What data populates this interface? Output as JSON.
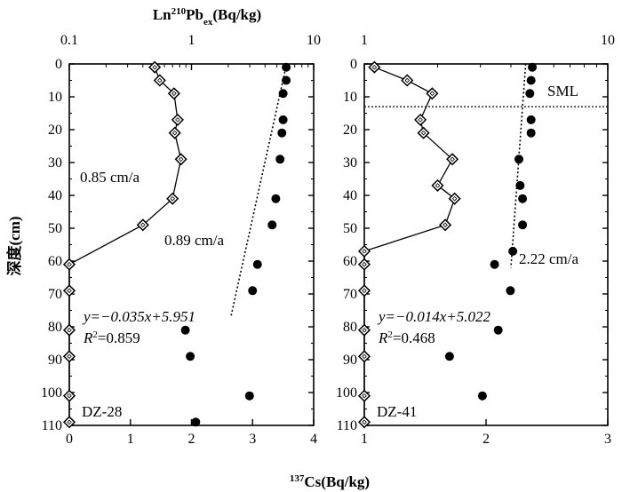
{
  "chart_data": [
    {
      "type": "scatter",
      "panel_label": "DZ-28",
      "ylabel": "深度(cm)",
      "ylim": [
        110,
        0
      ],
      "y_ticks": [
        0,
        10,
        20,
        30,
        40,
        50,
        60,
        70,
        80,
        90,
        100,
        110
      ],
      "top_axis": {
        "label": "Ln<sup>210</sup>Pb<sub>ex</sub>(Bq/kg)",
        "scale": "log",
        "xlim": [
          0.1,
          10
        ],
        "ticks": [
          0.1,
          1,
          10
        ],
        "tick_labels": [
          "0.1",
          "1",
          "10"
        ]
      },
      "bottom_axis": {
        "label": "<sup>137</sup>Cs(Bq/kg)",
        "scale": "linear",
        "xlim": [
          0,
          4
        ],
        "ticks": [
          0,
          1,
          2,
          3,
          4
        ],
        "tick_labels": [
          "0",
          "1",
          "2",
          "3",
          "4"
        ]
      },
      "series": [
        {
          "marker": "open-diamond",
          "axis": "top",
          "connected": true,
          "points": [
            [
              0.5,
              1
            ],
            [
              0.55,
              5
            ],
            [
              0.72,
              9
            ],
            [
              0.77,
              17
            ],
            [
              0.73,
              21
            ],
            [
              0.82,
              29
            ],
            [
              0.7,
              41
            ],
            [
              0.4,
              49
            ],
            [
              0.1,
              61
            ],
            [
              0.1,
              69
            ],
            [
              0.1,
              81
            ],
            [
              0.1,
              89
            ],
            [
              0.1,
              101
            ],
            [
              0.1,
              109
            ]
          ]
        },
        {
          "marker": "filled-circle",
          "axis": "bottom",
          "connected": false,
          "points": [
            [
              3.55,
              1
            ],
            [
              3.55,
              5
            ],
            [
              3.5,
              9
            ],
            [
              3.5,
              17
            ],
            [
              3.48,
              21
            ],
            [
              3.45,
              29
            ],
            [
              3.38,
              41
            ],
            [
              3.32,
              49
            ],
            [
              3.08,
              61
            ],
            [
              3.0,
              69
            ],
            [
              1.9,
              81
            ],
            [
              1.98,
              89
            ],
            [
              2.95,
              101
            ],
            [
              2.07,
              109
            ]
          ]
        }
      ],
      "fit_line": {
        "axis": "top",
        "points": [
          [
            6.0,
            0
          ],
          [
            2.1,
            77
          ]
        ],
        "equation": "y=−0.035x+5.951",
        "r2": "=0.859"
      },
      "annotations": [
        "0.85 cm/a",
        "0.89 cm/a"
      ]
    },
    {
      "type": "scatter",
      "panel_label": "DZ-41",
      "ylim": [
        110,
        0
      ],
      "y_ticks": [
        0,
        10,
        20,
        30,
        40,
        50,
        60,
        70,
        80,
        90,
        100,
        110
      ],
      "top_axis": {
        "scale": "log",
        "xlim": [
          1,
          10
        ],
        "ticks": [
          1,
          10
        ],
        "tick_labels": [
          "1",
          "10"
        ]
      },
      "bottom_axis": {
        "scale": "linear",
        "xlim": [
          1,
          3
        ],
        "ticks": [
          1,
          2,
          3
        ],
        "tick_labels": [
          "1",
          "2",
          "3"
        ]
      },
      "series": [
        {
          "marker": "open-diamond",
          "axis": "top",
          "connected": true,
          "points": [
            [
              1.1,
              1
            ],
            [
              1.5,
              5
            ],
            [
              1.9,
              9
            ],
            [
              1.7,
              17
            ],
            [
              1.75,
              21
            ],
            [
              2.3,
              29
            ],
            [
              2.0,
              37
            ],
            [
              2.35,
              41
            ],
            [
              2.15,
              49
            ],
            [
              1.0,
              57
            ],
            [
              1.0,
              61
            ],
            [
              1.0,
              69
            ],
            [
              1.0,
              81
            ],
            [
              1.0,
              89
            ],
            [
              1.0,
              101
            ],
            [
              1.0,
              109
            ]
          ]
        },
        {
          "marker": "filled-circle",
          "axis": "bottom",
          "connected": false,
          "points": [
            [
              2.38,
              1
            ],
            [
              2.37,
              5
            ],
            [
              2.36,
              9
            ],
            [
              2.37,
              17
            ],
            [
              2.37,
              21
            ],
            [
              2.27,
              29
            ],
            [
              2.28,
              37
            ],
            [
              2.3,
              41
            ],
            [
              2.3,
              49
            ],
            [
              2.22,
              57
            ],
            [
              2.07,
              61
            ],
            [
              2.2,
              69
            ],
            [
              2.1,
              81
            ],
            [
              1.7,
              89
            ],
            [
              1.97,
              101
            ]
          ]
        }
      ],
      "fit_line": {
        "axis": "top",
        "points": [
          [
            4.6,
            0
          ],
          [
            4.0,
            62
          ]
        ],
        "equation": "y=−0.014x+5.022",
        "r2": "=0.468"
      },
      "sml_line_depth": 13,
      "annotations": [
        "SML",
        "2.22 cm/a"
      ]
    }
  ]
}
